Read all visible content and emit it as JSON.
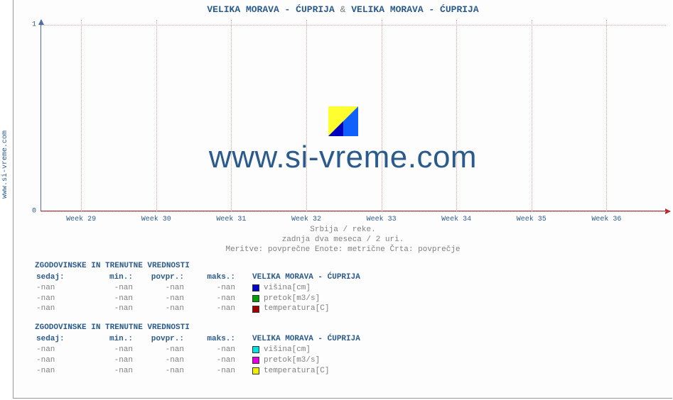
{
  "side_label": "www.si-vreme.com",
  "title_a": "VELIKA MORAVA -  ĆUPRIJA",
  "title_amp": "&",
  "title_b": "VELIKA MORAVA -  ĆUPRIJA",
  "chart": {
    "type": "line",
    "background_color": "#fdfdfd",
    "ylim": [
      0,
      1
    ],
    "yticks": [
      {
        "pos": 1.0,
        "label": "0"
      },
      {
        "pos": 0.025,
        "label": "1"
      }
    ],
    "xticks": [
      {
        "pos": 0.065,
        "label": "Week 29"
      },
      {
        "pos": 0.185,
        "label": "Week 30"
      },
      {
        "pos": 0.305,
        "label": "Week 31"
      },
      {
        "pos": 0.425,
        "label": "Week 32"
      },
      {
        "pos": 0.545,
        "label": "Week 33"
      },
      {
        "pos": 0.665,
        "label": "Week 34"
      },
      {
        "pos": 0.785,
        "label": "Week 35"
      },
      {
        "pos": 0.905,
        "label": "Week 36"
      }
    ],
    "y_axis_color": "#4a6fa0",
    "x_axis_color": "#b03030",
    "grid_color": "#d9a0a0"
  },
  "caption1": "Srbija / reke.",
  "caption2": "zadnja dva meseca / 2 uri.",
  "caption3": "Meritve: povprečne  Enote: metrične  Črta: povprečje",
  "watermark": "www.si-vreme.com",
  "table_header_title": "ZGODOVINSKE IN TRENUTNE VREDNOSTI",
  "table_headers": {
    "c1": "sedaj:",
    "c2": "min.:",
    "c3": "povpr.:",
    "c4": "maks.:"
  },
  "series_label_a": "VELIKA MORAVA -  ĆUPRIJA",
  "series_label_b": "VELIKA MORAVA -  ĆUPRIJA",
  "tables": [
    {
      "series": "a",
      "rows": [
        {
          "c1": "-nan",
          "c2": "-nan",
          "c3": "-nan",
          "c4": "-nan",
          "swatch": "#0000c0",
          "metric": "višina[cm]"
        },
        {
          "c1": "-nan",
          "c2": "-nan",
          "c3": "-nan",
          "c4": "-nan",
          "swatch": "#00a000",
          "metric": "pretok[m3/s]"
        },
        {
          "c1": "-nan",
          "c2": "-nan",
          "c3": "-nan",
          "c4": "-nan",
          "swatch": "#a00000",
          "metric": "temperatura[C]"
        }
      ]
    },
    {
      "series": "b",
      "rows": [
        {
          "c1": "-nan",
          "c2": "-nan",
          "c3": "-nan",
          "c4": "-nan",
          "swatch": "#00e0e0",
          "metric": "višina[cm]"
        },
        {
          "c1": "-nan",
          "c2": "-nan",
          "c3": "-nan",
          "c4": "-nan",
          "swatch": "#e000e0",
          "metric": "pretok[m3/s]"
        },
        {
          "c1": "-nan",
          "c2": "-nan",
          "c3": "-nan",
          "c4": "-nan",
          "swatch": "#f0f000",
          "metric": "temperatura[C]"
        }
      ]
    }
  ]
}
